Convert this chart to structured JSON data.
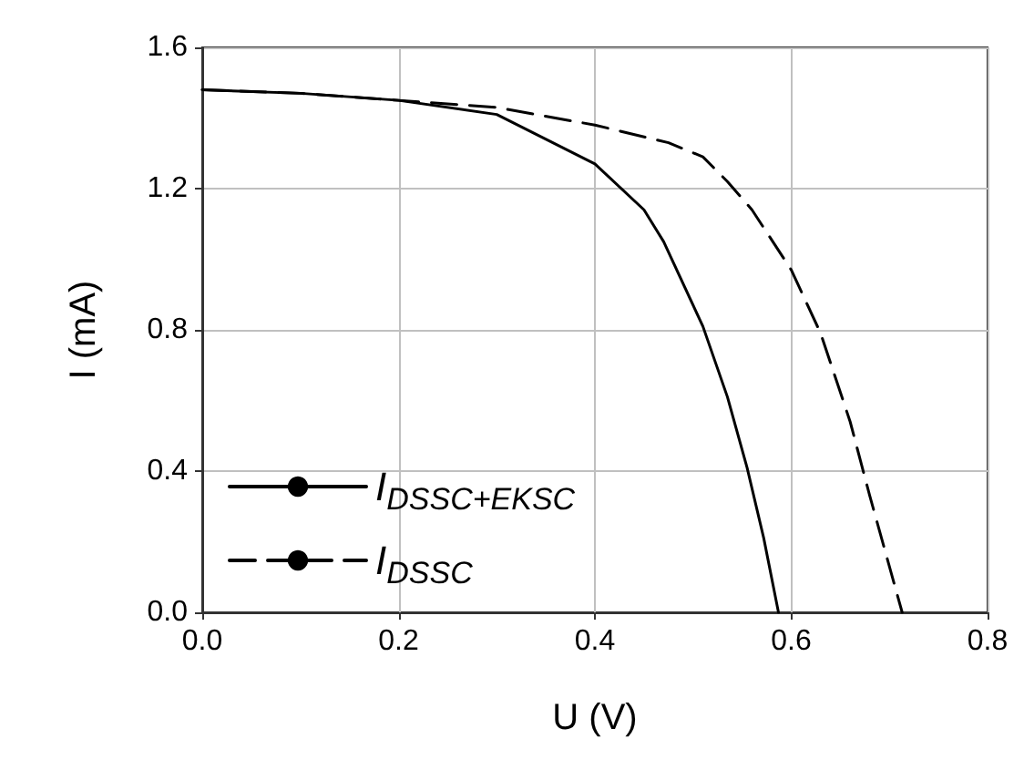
{
  "chart_data": {
    "type": "line",
    "xlabel": "U (V)",
    "ylabel": "I (mA)",
    "xlim": [
      0,
      0.8
    ],
    "xticks": [
      {
        "value": 0,
        "label": "0.0"
      },
      {
        "value": 0.2,
        "label": "0.2"
      },
      {
        "value": 0.4,
        "label": "0.4"
      },
      {
        "value": 0.6,
        "label": "0.6"
      },
      {
        "value": 0.8,
        "label": "0.8"
      }
    ],
    "ylim": [
      0,
      1.6
    ],
    "yticks": [
      {
        "value": 0,
        "label": "0.0"
      },
      {
        "value": 0.4,
        "label": "0.4"
      },
      {
        "value": 0.8,
        "label": "0.8"
      },
      {
        "value": 1.2,
        "label": "1.2"
      },
      {
        "value": 1.6,
        "label": "1.6"
      }
    ],
    "grid": true,
    "legend": "bottom left",
    "marker": "none",
    "series": [
      {
        "name": "I$_{DSSC+EKSC}$",
        "color": "#000000",
        "line_style": "solid",
        "x": [
          0,
          0.1,
          0.2,
          0.3,
          0.4,
          0.45,
          0.47,
          0.51,
          0.535,
          0.555,
          0.572,
          0.587
        ],
        "values": [
          1.48,
          1.47,
          1.45,
          1.41,
          1.27,
          1.14,
          1.05,
          0.81,
          0.61,
          0.41,
          0.21,
          0
        ]
      },
      {
        "name": "I$_{DSSC}$",
        "color": "#000000",
        "line_style": "dashed",
        "x": [
          0,
          0.1,
          0.2,
          0.3,
          0.4,
          0.475,
          0.51,
          0.535,
          0.56,
          0.6,
          0.63,
          0.66,
          0.68,
          0.713
        ],
        "values": [
          1.48,
          1.47,
          1.45,
          1.43,
          1.38,
          1.33,
          1.29,
          1.22,
          1.14,
          0.97,
          0.79,
          0.54,
          0.33,
          0
        ]
      }
    ]
  }
}
